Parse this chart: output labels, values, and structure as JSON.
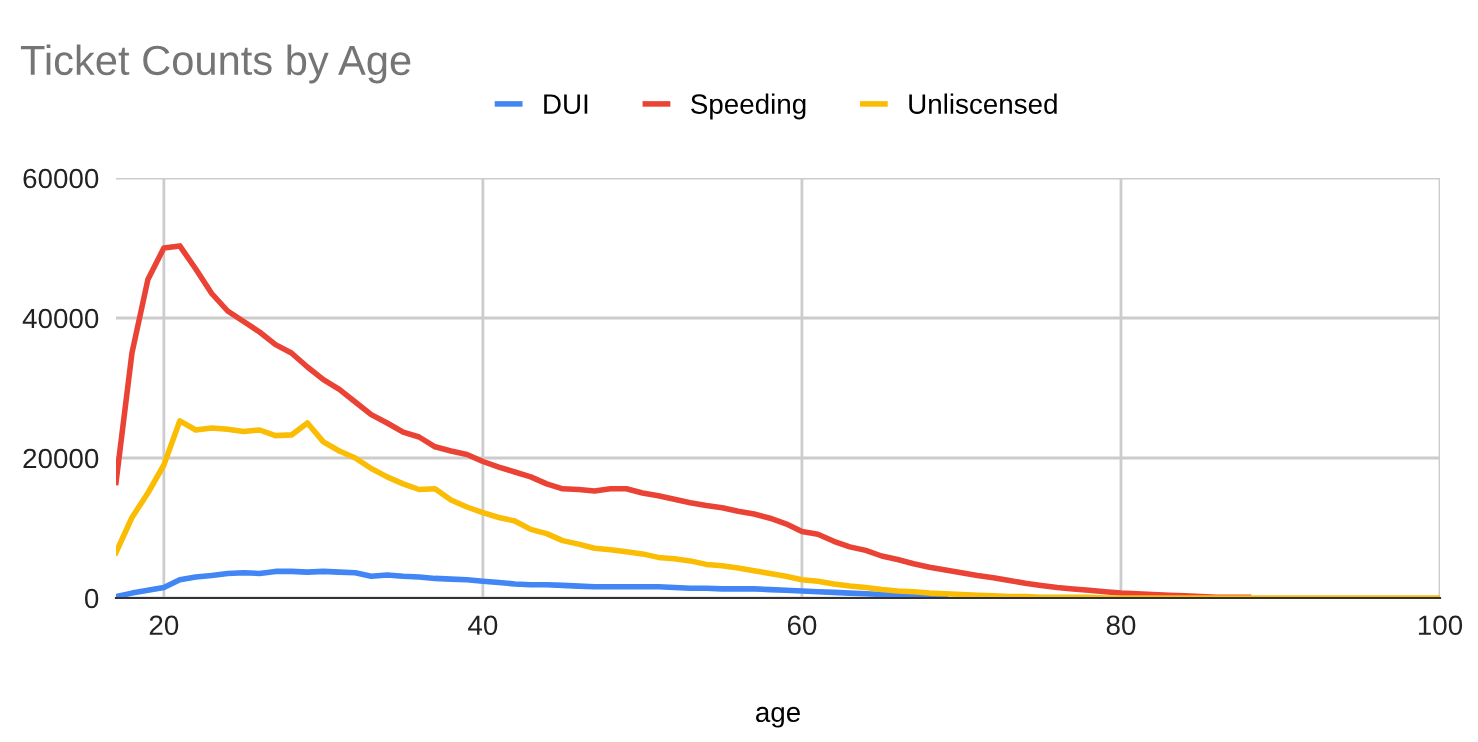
{
  "chart_data": {
    "type": "line",
    "title": "Ticket Counts by Age",
    "xlabel": "age",
    "x": [
      17,
      18,
      19,
      20,
      21,
      22,
      23,
      24,
      25,
      26,
      27,
      28,
      29,
      30,
      31,
      32,
      33,
      34,
      35,
      36,
      37,
      38,
      39,
      40,
      41,
      42,
      43,
      44,
      45,
      46,
      47,
      48,
      49,
      50,
      51,
      52,
      53,
      54,
      55,
      56,
      57,
      58,
      59,
      60,
      61,
      62,
      63,
      64,
      65,
      66,
      67,
      68,
      69,
      70,
      71,
      72,
      73,
      74,
      75,
      76,
      77,
      78,
      79,
      80,
      81,
      82,
      83,
      84,
      85,
      86,
      87,
      88,
      89,
      90,
      91,
      92,
      93,
      94,
      95,
      96,
      97,
      98,
      99,
      100
    ],
    "series": [
      {
        "name": "DUI",
        "color": "#4285f4",
        "values": [
          200,
          700,
          1100,
          1500,
          2600,
          3000,
          3200,
          3500,
          3600,
          3500,
          3800,
          3800,
          3700,
          3800,
          3700,
          3600,
          3100,
          3300,
          3100,
          3000,
          2800,
          2700,
          2600,
          2400,
          2200,
          2000,
          1900,
          1900,
          1800,
          1700,
          1600,
          1600,
          1600,
          1600,
          1600,
          1500,
          1400,
          1400,
          1300,
          1300,
          1300,
          1200,
          1100,
          1000,
          900,
          800,
          700,
          600,
          500,
          500,
          400,
          300,
          300,
          null,
          null,
          null,
          null,
          null,
          null,
          null,
          null,
          null,
          null,
          null,
          null,
          null,
          null,
          null,
          null,
          null,
          null,
          null,
          null,
          null,
          null,
          null,
          null,
          null,
          null,
          null,
          null,
          null,
          null,
          null
        ]
      },
      {
        "name": "Speeding",
        "color": "#ea4335",
        "values": [
          16500,
          35000,
          45500,
          50000,
          50300,
          47000,
          43500,
          41000,
          39500,
          38000,
          36200,
          35000,
          33000,
          31200,
          29800,
          28000,
          26200,
          25000,
          23700,
          23000,
          21600,
          21000,
          20500,
          19500,
          18700,
          18000,
          17300,
          16300,
          15600,
          15500,
          15300,
          15600,
          15600,
          15000,
          14600,
          14100,
          13600,
          13200,
          12900,
          12400,
          12000,
          11400,
          10600,
          9500,
          9100,
          8100,
          7300,
          6800,
          6000,
          5500,
          4900,
          4400,
          4000,
          3600,
          3200,
          2900,
          2500,
          2100,
          1800,
          1500,
          1300,
          1100,
          900,
          700,
          600,
          500,
          400,
          300,
          200,
          100,
          100,
          100,
          null,
          null,
          null,
          null,
          null,
          null,
          null,
          null,
          null,
          null,
          null,
          null
        ]
      },
      {
        "name": "Unliscensed",
        "color": "#fbbc04",
        "values": [
          6500,
          11500,
          15000,
          19000,
          25300,
          24000,
          24300,
          24100,
          23800,
          24000,
          23200,
          23300,
          25000,
          22300,
          21000,
          20000,
          18500,
          17300,
          16300,
          15500,
          15600,
          14000,
          13000,
          12200,
          11500,
          11000,
          9800,
          9200,
          8200,
          7700,
          7100,
          6900,
          6600,
          6300,
          5800,
          5600,
          5300,
          4800,
          4600,
          4300,
          3900,
          3500,
          3100,
          2600,
          2400,
          2000,
          1700,
          1500,
          1200,
          1000,
          900,
          700,
          600,
          500,
          400,
          300,
          200,
          200,
          100,
          100,
          100,
          100,
          0,
          0,
          0,
          0,
          0,
          0,
          0,
          0,
          0,
          0,
          0,
          0,
          0,
          0,
          0,
          0,
          0,
          0,
          0,
          0,
          0,
          0
        ]
      }
    ],
    "xlim": [
      17,
      100
    ],
    "xticks": [
      20,
      40,
      60,
      80,
      100
    ],
    "ylim": [
      0,
      60000
    ],
    "yticks": [
      0,
      20000,
      40000,
      60000
    ],
    "grid": true,
    "legend": "top",
    "marker": "none",
    "line_style": "solid"
  }
}
